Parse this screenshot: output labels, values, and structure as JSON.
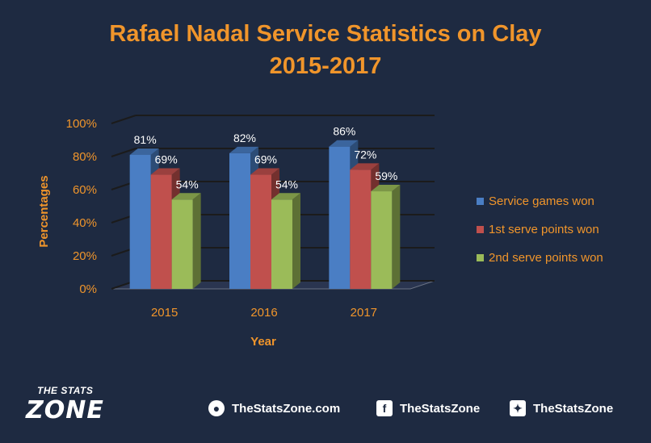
{
  "chart_data": {
    "type": "bar",
    "title": "Rafael Nadal Service Statistics on Clay",
    "subtitle": "2015-2017",
    "xlabel": "Year",
    "ylabel": "Percentages",
    "categories": [
      "2015",
      "2016",
      "2017"
    ],
    "ylim": [
      0,
      100
    ],
    "yticks": [
      "0%",
      "20%",
      "40%",
      "60%",
      "80%",
      "100%"
    ],
    "grid": true,
    "legend_position": "right",
    "series": [
      {
        "name": "Service games won",
        "values": [
          81,
          82,
          86
        ],
        "labels": [
          "81%",
          "82%",
          "86%"
        ],
        "color": "#4a7ec4"
      },
      {
        "name": "1st serve points won",
        "values": [
          69,
          69,
          72
        ],
        "labels": [
          "69%",
          "69%",
          "72%"
        ],
        "color": "#c0504d"
      },
      {
        "name": "2nd serve points won",
        "values": [
          54,
          54,
          59
        ],
        "labels": [
          "54%",
          "54%",
          "59%"
        ],
        "color": "#9bbb59"
      }
    ]
  },
  "colors": {
    "background": "#1e2a41",
    "accent": "#f0952b",
    "grid": "#1b1b1b"
  },
  "footer": {
    "logo_top": "THE STATS",
    "logo_bottom": "ZONE",
    "website": "TheStatsZone.com",
    "facebook": "TheStatsZone",
    "twitter": "TheStatsZone",
    "website_icon": "globe-icon",
    "facebook_icon": "facebook-icon",
    "twitter_icon": "twitter-icon"
  }
}
